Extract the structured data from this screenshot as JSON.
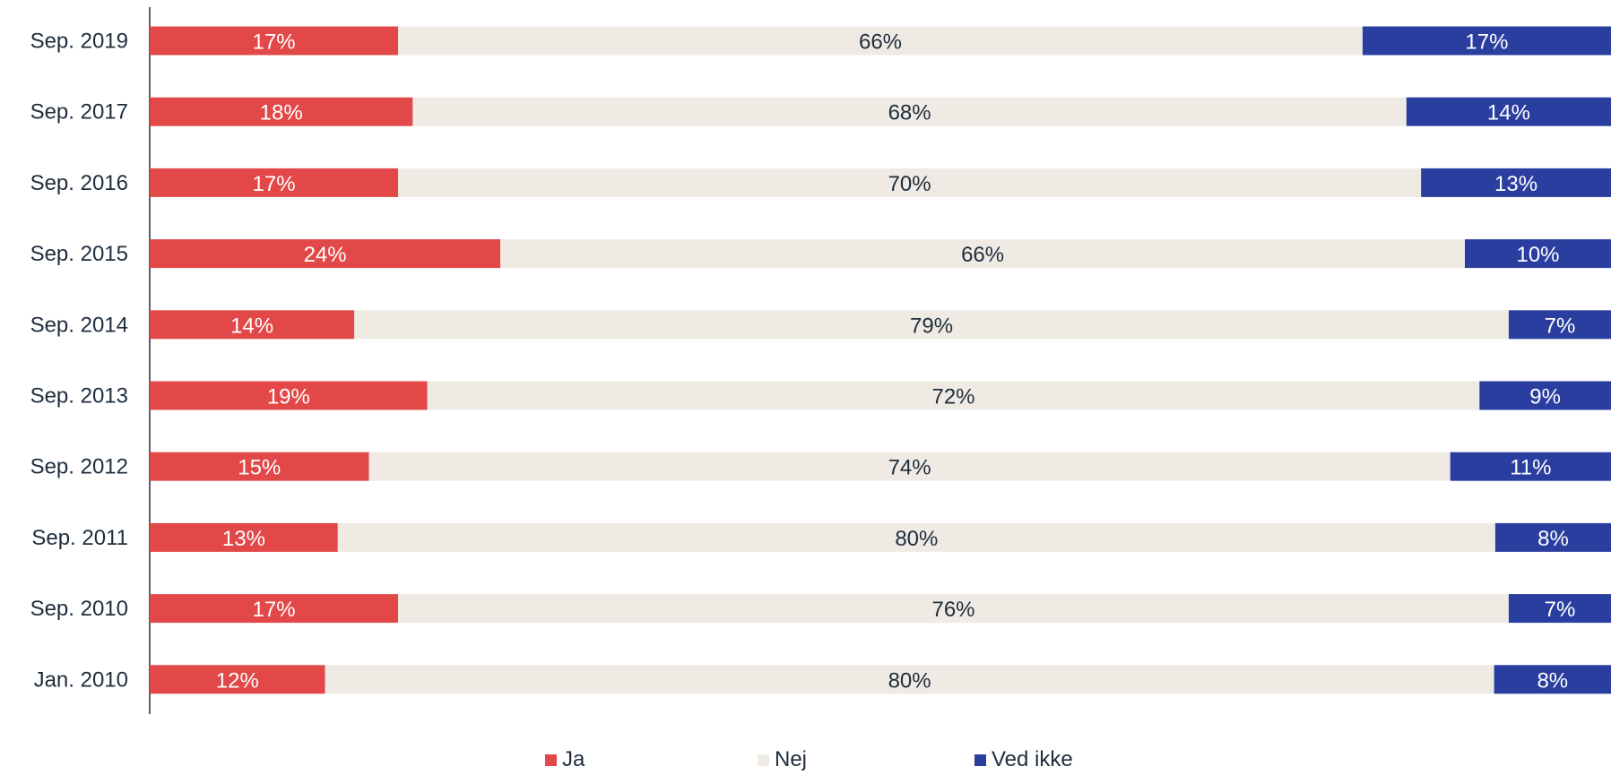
{
  "chart_data": {
    "type": "bar",
    "orientation": "horizontal",
    "stacked": "100%",
    "categories": [
      "Sep. 2019",
      "Sep. 2017",
      "Sep. 2016",
      "Sep. 2015",
      "Sep. 2014",
      "Sep. 2013",
      "Sep. 2012",
      "Sep. 2011",
      "Sep. 2010",
      "Jan. 2010"
    ],
    "series": [
      {
        "name": "Ja",
        "color": "#e24848",
        "label_color": "#ffffff",
        "values": [
          17,
          18,
          17,
          24,
          14,
          19,
          15,
          13,
          17,
          12
        ]
      },
      {
        "name": "Nej",
        "color": "#efebe4",
        "label_color": "#1f2d3d",
        "values": [
          66,
          68,
          70,
          66,
          79,
          72,
          74,
          80,
          76,
          80
        ]
      },
      {
        "name": "Ved ikke",
        "color": "#2a3ea0",
        "label_color": "#ffffff",
        "values": [
          17,
          14,
          13,
          10,
          7,
          9,
          11,
          8,
          7,
          8
        ]
      }
    ],
    "value_suffix": "%",
    "legend_position": "bottom",
    "grid": false
  }
}
